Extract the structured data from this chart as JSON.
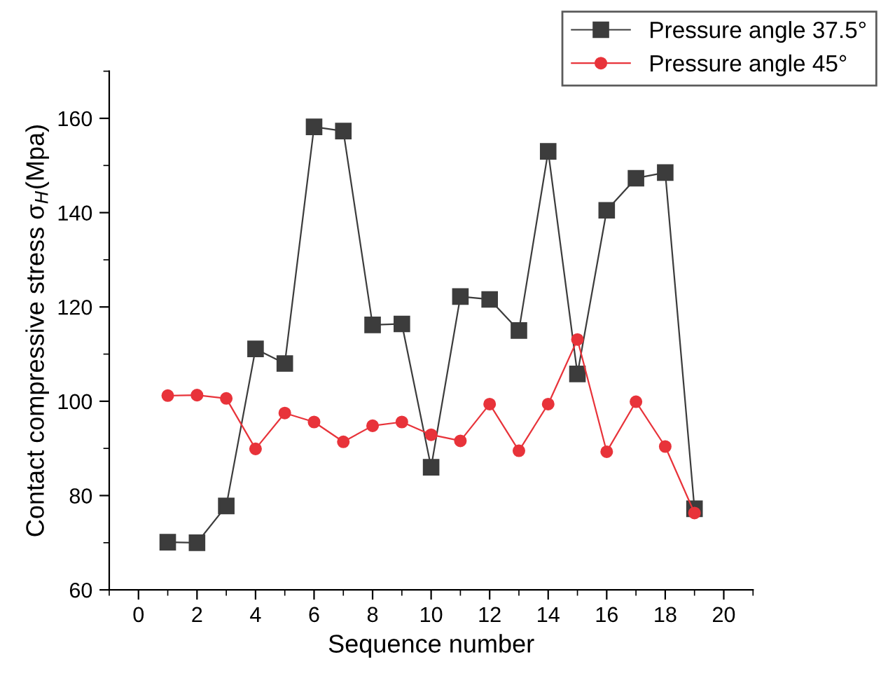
{
  "chart_data": {
    "type": "line",
    "xlabel": "Sequence number",
    "ylabel": "Contact compressive stress σ$_{H}$(Mpa)",
    "x": [
      1,
      2,
      3,
      4,
      5,
      6,
      7,
      8,
      9,
      10,
      11,
      12,
      13,
      14,
      15,
      16,
      17,
      18,
      19
    ],
    "series": [
      {
        "name": "Pressure angle 37.5°",
        "color": "#3c3c3c",
        "marker": "square",
        "values": [
          70.1,
          70,
          77.8,
          111.1,
          108,
          158.2,
          157.3,
          116.2,
          116.4,
          86,
          122.2,
          121.6,
          115,
          153,
          105.8,
          140.5,
          147.3,
          148.5,
          77.2
        ]
      },
      {
        "name": "Pressure angle 45°",
        "color": "#e8333a",
        "marker": "circle",
        "values": [
          101.2,
          101.3,
          100.6,
          89.9,
          97.5,
          95.6,
          91.4,
          94.8,
          95.6,
          92.9,
          91.6,
          99.4,
          89.5,
          99.4,
          113.1,
          89.3,
          99.9,
          90.4,
          76.3
        ]
      }
    ],
    "xlim": [
      -1,
      21
    ],
    "xticks": [
      0,
      2,
      4,
      6,
      8,
      10,
      12,
      14,
      16,
      18,
      20
    ],
    "ylim": [
      60,
      170
    ],
    "yticks": [
      60,
      80,
      100,
      120,
      140,
      160
    ],
    "grid": false,
    "legend": "top right",
    "line_style": "solid"
  }
}
